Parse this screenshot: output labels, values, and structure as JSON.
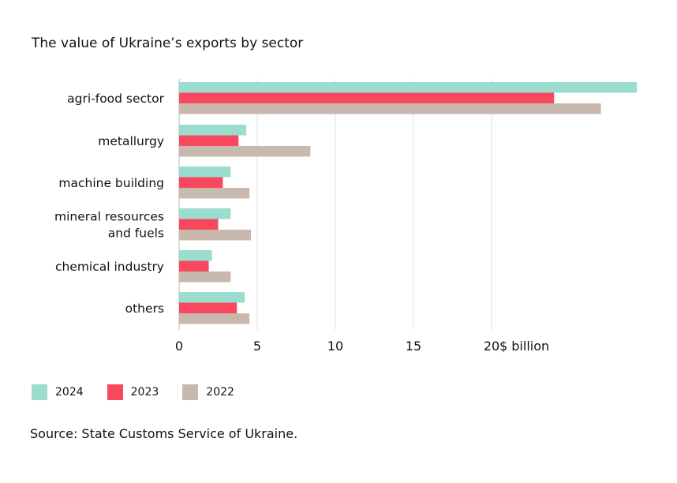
{
  "title": "The value of Ukraine’s exports by sector",
  "source": "Source: State Customs Service of Ukraine.",
  "chart_data": {
    "type": "bar",
    "orientation": "horizontal",
    "title": "The value of Ukraine’s exports by sector",
    "xlabel": "$ billion",
    "categories": [
      "agri-food sector",
      "metallurgy",
      "machine building",
      "mineral resources and fuels",
      "chemical industry",
      "others"
    ],
    "category_lines": [
      [
        "agri-food sector"
      ],
      [
        "metallurgy"
      ],
      [
        "machine building"
      ],
      [
        "mineral resources",
        "and fuels"
      ],
      [
        "chemical industry"
      ],
      [
        "others"
      ]
    ],
    "series": [
      {
        "name": "2024",
        "color": "#9adccd",
        "values": [
          29.3,
          4.3,
          3.3,
          3.3,
          2.1,
          4.2
        ]
      },
      {
        "name": "2023",
        "color": "#f7485e",
        "values": [
          24.0,
          3.8,
          2.8,
          2.5,
          1.9,
          3.7
        ]
      },
      {
        "name": "2022",
        "color": "#c9b8ae",
        "values": [
          27.0,
          8.4,
          4.5,
          4.6,
          3.3,
          4.5
        ]
      }
    ],
    "xticks": [
      "0",
      "5",
      "10",
      "15",
      "20"
    ],
    "xtick_values": [
      0,
      5,
      10,
      15,
      20
    ],
    "xlim": [
      0,
      29.3
    ],
    "grid": "vertical",
    "legend_position": "bottom-left"
  }
}
